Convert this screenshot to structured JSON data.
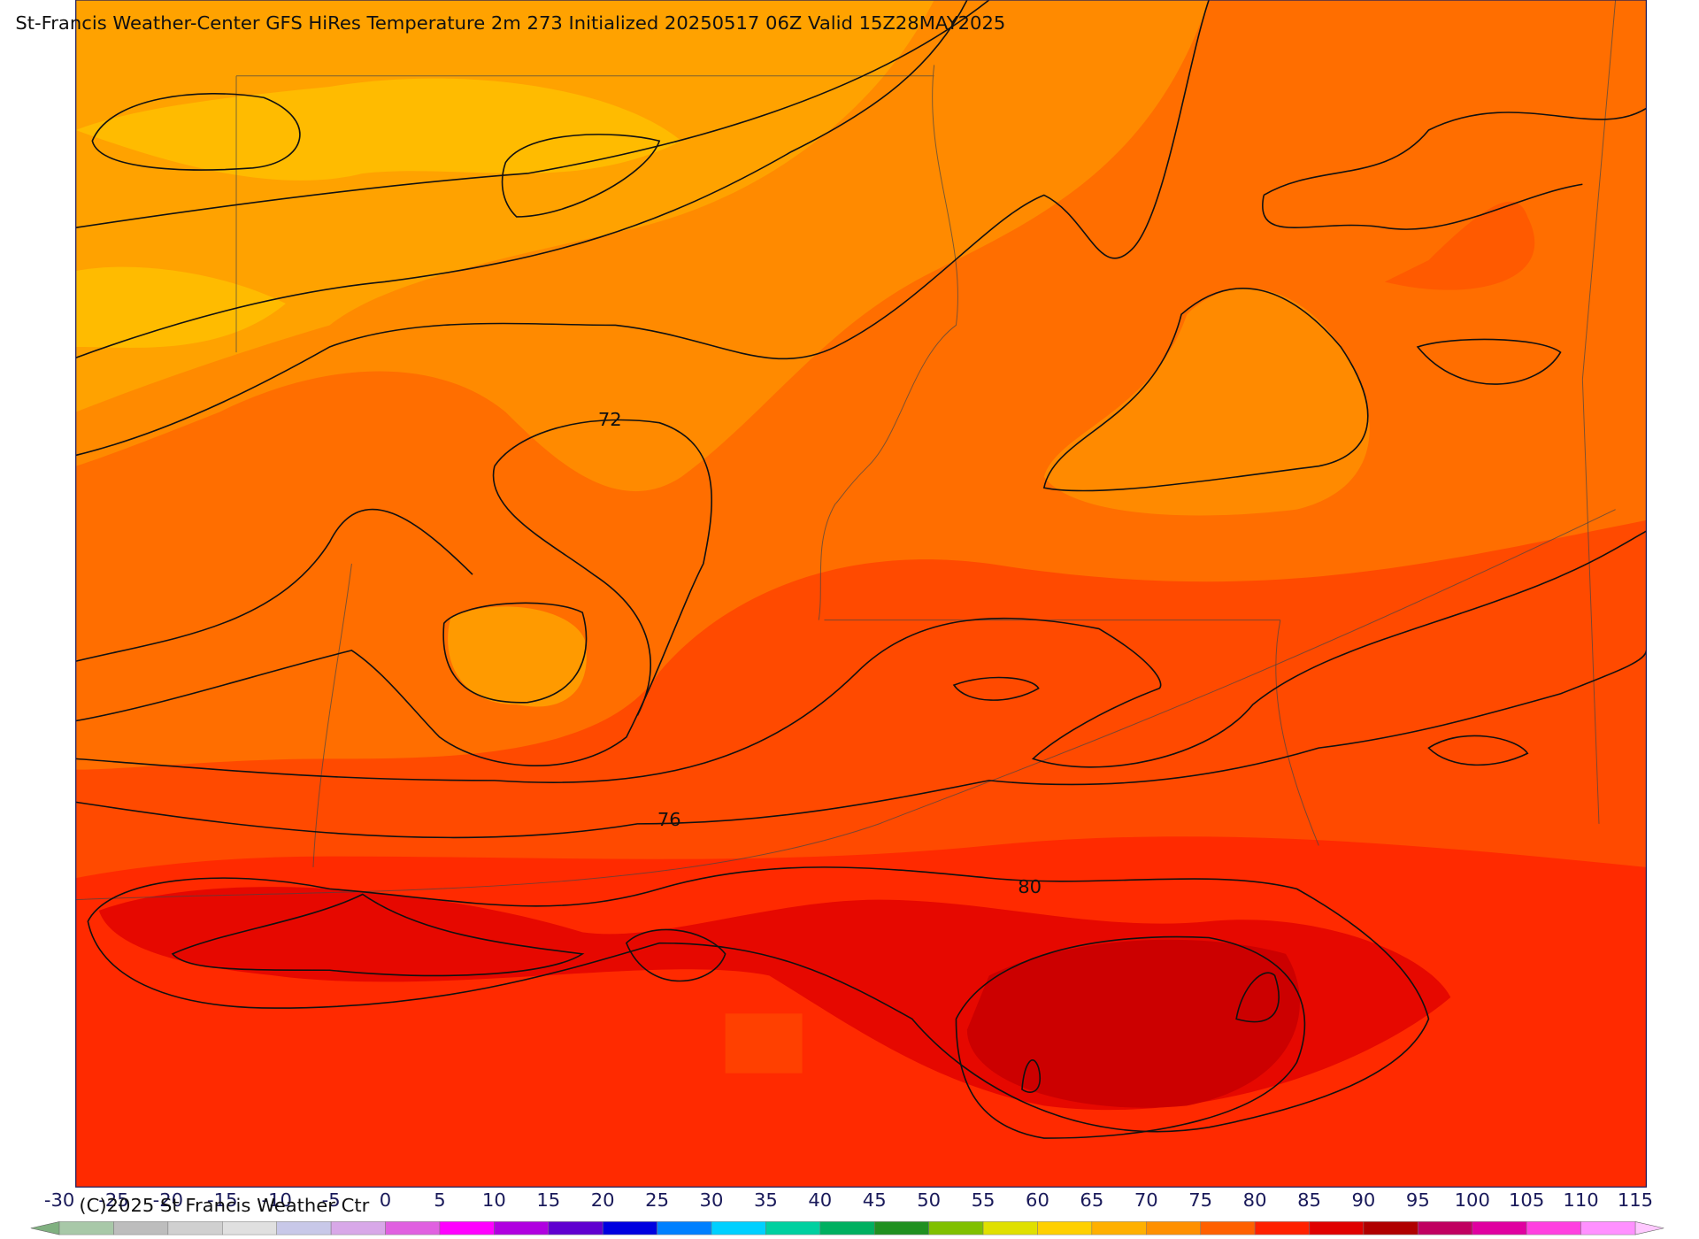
{
  "title": "St-Francis Weather-Center GFS HiRes Temperature 2m  273 Initialized 20250517 06Z Valid 15Z28MAY2025",
  "contour_labels": [
    "72",
    "76",
    "80"
  ],
  "copyright": "(C)2025 St Francis Weather Ctr",
  "colorbar": {
    "ticks": [
      -30,
      -25,
      -20,
      -15,
      -10,
      -5,
      0,
      5,
      10,
      15,
      20,
      25,
      30,
      35,
      40,
      45,
      50,
      55,
      60,
      65,
      70,
      75,
      80,
      85,
      90,
      95,
      100,
      105,
      110,
      115
    ],
    "colors": [
      "#a8c8a8",
      "#bdbdbd",
      "#d0d0d0",
      "#e0e0e0",
      "#c8c8e8",
      "#d8a8e8",
      "#e060e0",
      "#ff00ff",
      "#b000e0",
      "#6000d0",
      "#0000e0",
      "#0080ff",
      "#00d0ff",
      "#00d0a0",
      "#00b060",
      "#209020",
      "#80c000",
      "#e0e000",
      "#ffd000",
      "#ffb000",
      "#ff9000",
      "#ff6000",
      "#ff2000",
      "#e00000",
      "#b00000",
      "#c00060",
      "#e000a0",
      "#ff40e0",
      "#ff90ff"
    ]
  }
}
